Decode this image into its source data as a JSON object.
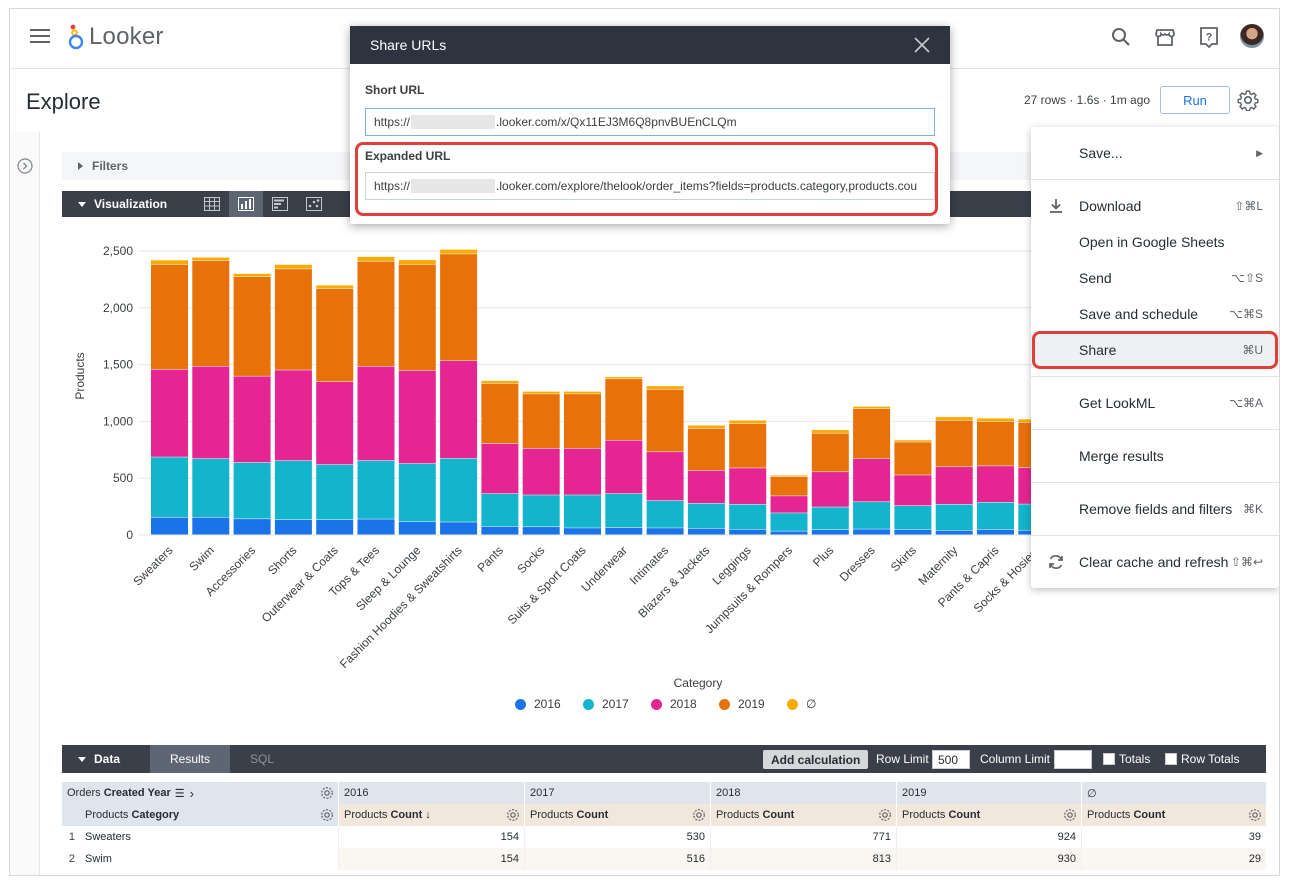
{
  "app": {
    "name": "Looker"
  },
  "explore": {
    "title": "Explore",
    "run_meta": "27 rows · 1.6s · 1m ago",
    "run_label": "Run",
    "filters_label": "Filters",
    "visualization_label": "Visualization"
  },
  "share_modal": {
    "title": "Share URLs",
    "short_url_label": "Short URL",
    "short_url_prefix": "https://",
    "short_url_suffix": ".looker.com/x/Qx11EJ3M6Q8pnvBUEnCLQm",
    "expanded_url_label": "Expanded URL",
    "expanded_url_prefix": "https://",
    "expanded_url_suffix": ".looker.com/explore/thelook/order_items?fields=products.category,products.cou"
  },
  "menu": {
    "save": "Save...",
    "download": "Download",
    "download_kb": "⇧⌘L",
    "open_sheets": "Open in Google Sheets",
    "send": "Send",
    "send_kb": "⌥⇧S",
    "save_schedule": "Save and schedule",
    "save_schedule_kb": "⌥⌘S",
    "share": "Share",
    "share_kb": "⌘U",
    "get_lookml": "Get LookML",
    "get_lookml_kb": "⌥⌘A",
    "merge": "Merge results",
    "remove": "Remove fields and filters",
    "remove_kb": "⌘K",
    "clear": "Clear cache and refresh",
    "clear_kb": "⇧⌘↩"
  },
  "chart_data": {
    "type": "bar",
    "stacked": true,
    "xlabel": "Category",
    "ylabel": "Products",
    "ylim": [
      0,
      2500
    ],
    "yticks": [
      0,
      500,
      1000,
      1500,
      2000,
      2500
    ],
    "yticks_labels": [
      "0",
      "500",
      "1,000",
      "1,500",
      "2,000",
      "2,500"
    ],
    "categories": [
      "Sweaters",
      "Swim",
      "Accessories",
      "Shorts",
      "Outerwear & Coats",
      "Tops & Tees",
      "Sleep & Lounge",
      "Fashion Hoodies & Sweatshirts",
      "Pants",
      "Socks",
      "Suits & Sport Coats",
      "Underwear",
      "Intimates",
      "Blazers & Jackets",
      "Leggings",
      "Jumpsuits & Rompers",
      "Plus",
      "Dresses",
      "Skirts",
      "Maternity",
      "Pants & Capris",
      "Socks & Hosiery"
    ],
    "series": [
      {
        "name": "2016",
        "color": "#1a73e8",
        "values": [
          154,
          154,
          140,
          132,
          132,
          138,
          116,
          112,
          72,
          70,
          60,
          62,
          60,
          56,
          48,
          32,
          44,
          50,
          46,
          38,
          46,
          40
        ]
      },
      {
        "name": "2017",
        "color": "#12b5cb",
        "values": [
          530,
          516,
          496,
          520,
          485,
          515,
          510,
          560,
          290,
          280,
          290,
          300,
          240,
          220,
          220,
          160,
          200,
          240,
          210,
          230,
          240,
          230
        ]
      },
      {
        "name": "2018",
        "color": "#e52592",
        "values": [
          771,
          813,
          760,
          798,
          730,
          830,
          820,
          860,
          440,
          410,
          410,
          470,
          430,
          290,
          320,
          150,
          310,
          380,
          270,
          330,
          320,
          320
        ]
      },
      {
        "name": "2019",
        "color": "#e8710a",
        "values": [
          924,
          930,
          875,
          890,
          820,
          925,
          935,
          940,
          530,
          480,
          480,
          540,
          550,
          370,
          390,
          170,
          340,
          440,
          290,
          410,
          390,
          400
        ]
      },
      {
        "name": "∅",
        "color": "#f9ab00",
        "values": [
          39,
          29,
          28,
          39,
          30,
          40,
          39,
          40,
          25,
          22,
          22,
          18,
          30,
          28,
          30,
          12,
          30,
          20,
          18,
          30,
          30,
          28
        ]
      }
    ]
  },
  "data_panel": {
    "label": "Data",
    "results_tab": "Results",
    "sql_tab": "SQL",
    "add_calculation": "Add calculation",
    "row_limit_label": "Row Limit",
    "row_limit_value": "500",
    "column_limit_label": "Column Limit",
    "column_limit_value": "",
    "totals_label": "Totals",
    "row_totals_label": "Row Totals"
  },
  "table": {
    "pivot_header": "Orders",
    "pivot_header_bold": "Created Year",
    "dim_header": "Products",
    "dim_header_bold": "Category",
    "measure_prefix": "Products",
    "measure_bold": "Count",
    "measure_bold_sorted": "Count ↓",
    "years": [
      "2016",
      "2017",
      "2018",
      "2019",
      "∅"
    ],
    "rows": [
      {
        "num": "1",
        "category": "Sweaters",
        "values": [
          "154",
          "530",
          "771",
          "924",
          "39"
        ]
      },
      {
        "num": "2",
        "category": "Swim",
        "values": [
          "154",
          "516",
          "813",
          "930",
          "29"
        ]
      }
    ]
  }
}
